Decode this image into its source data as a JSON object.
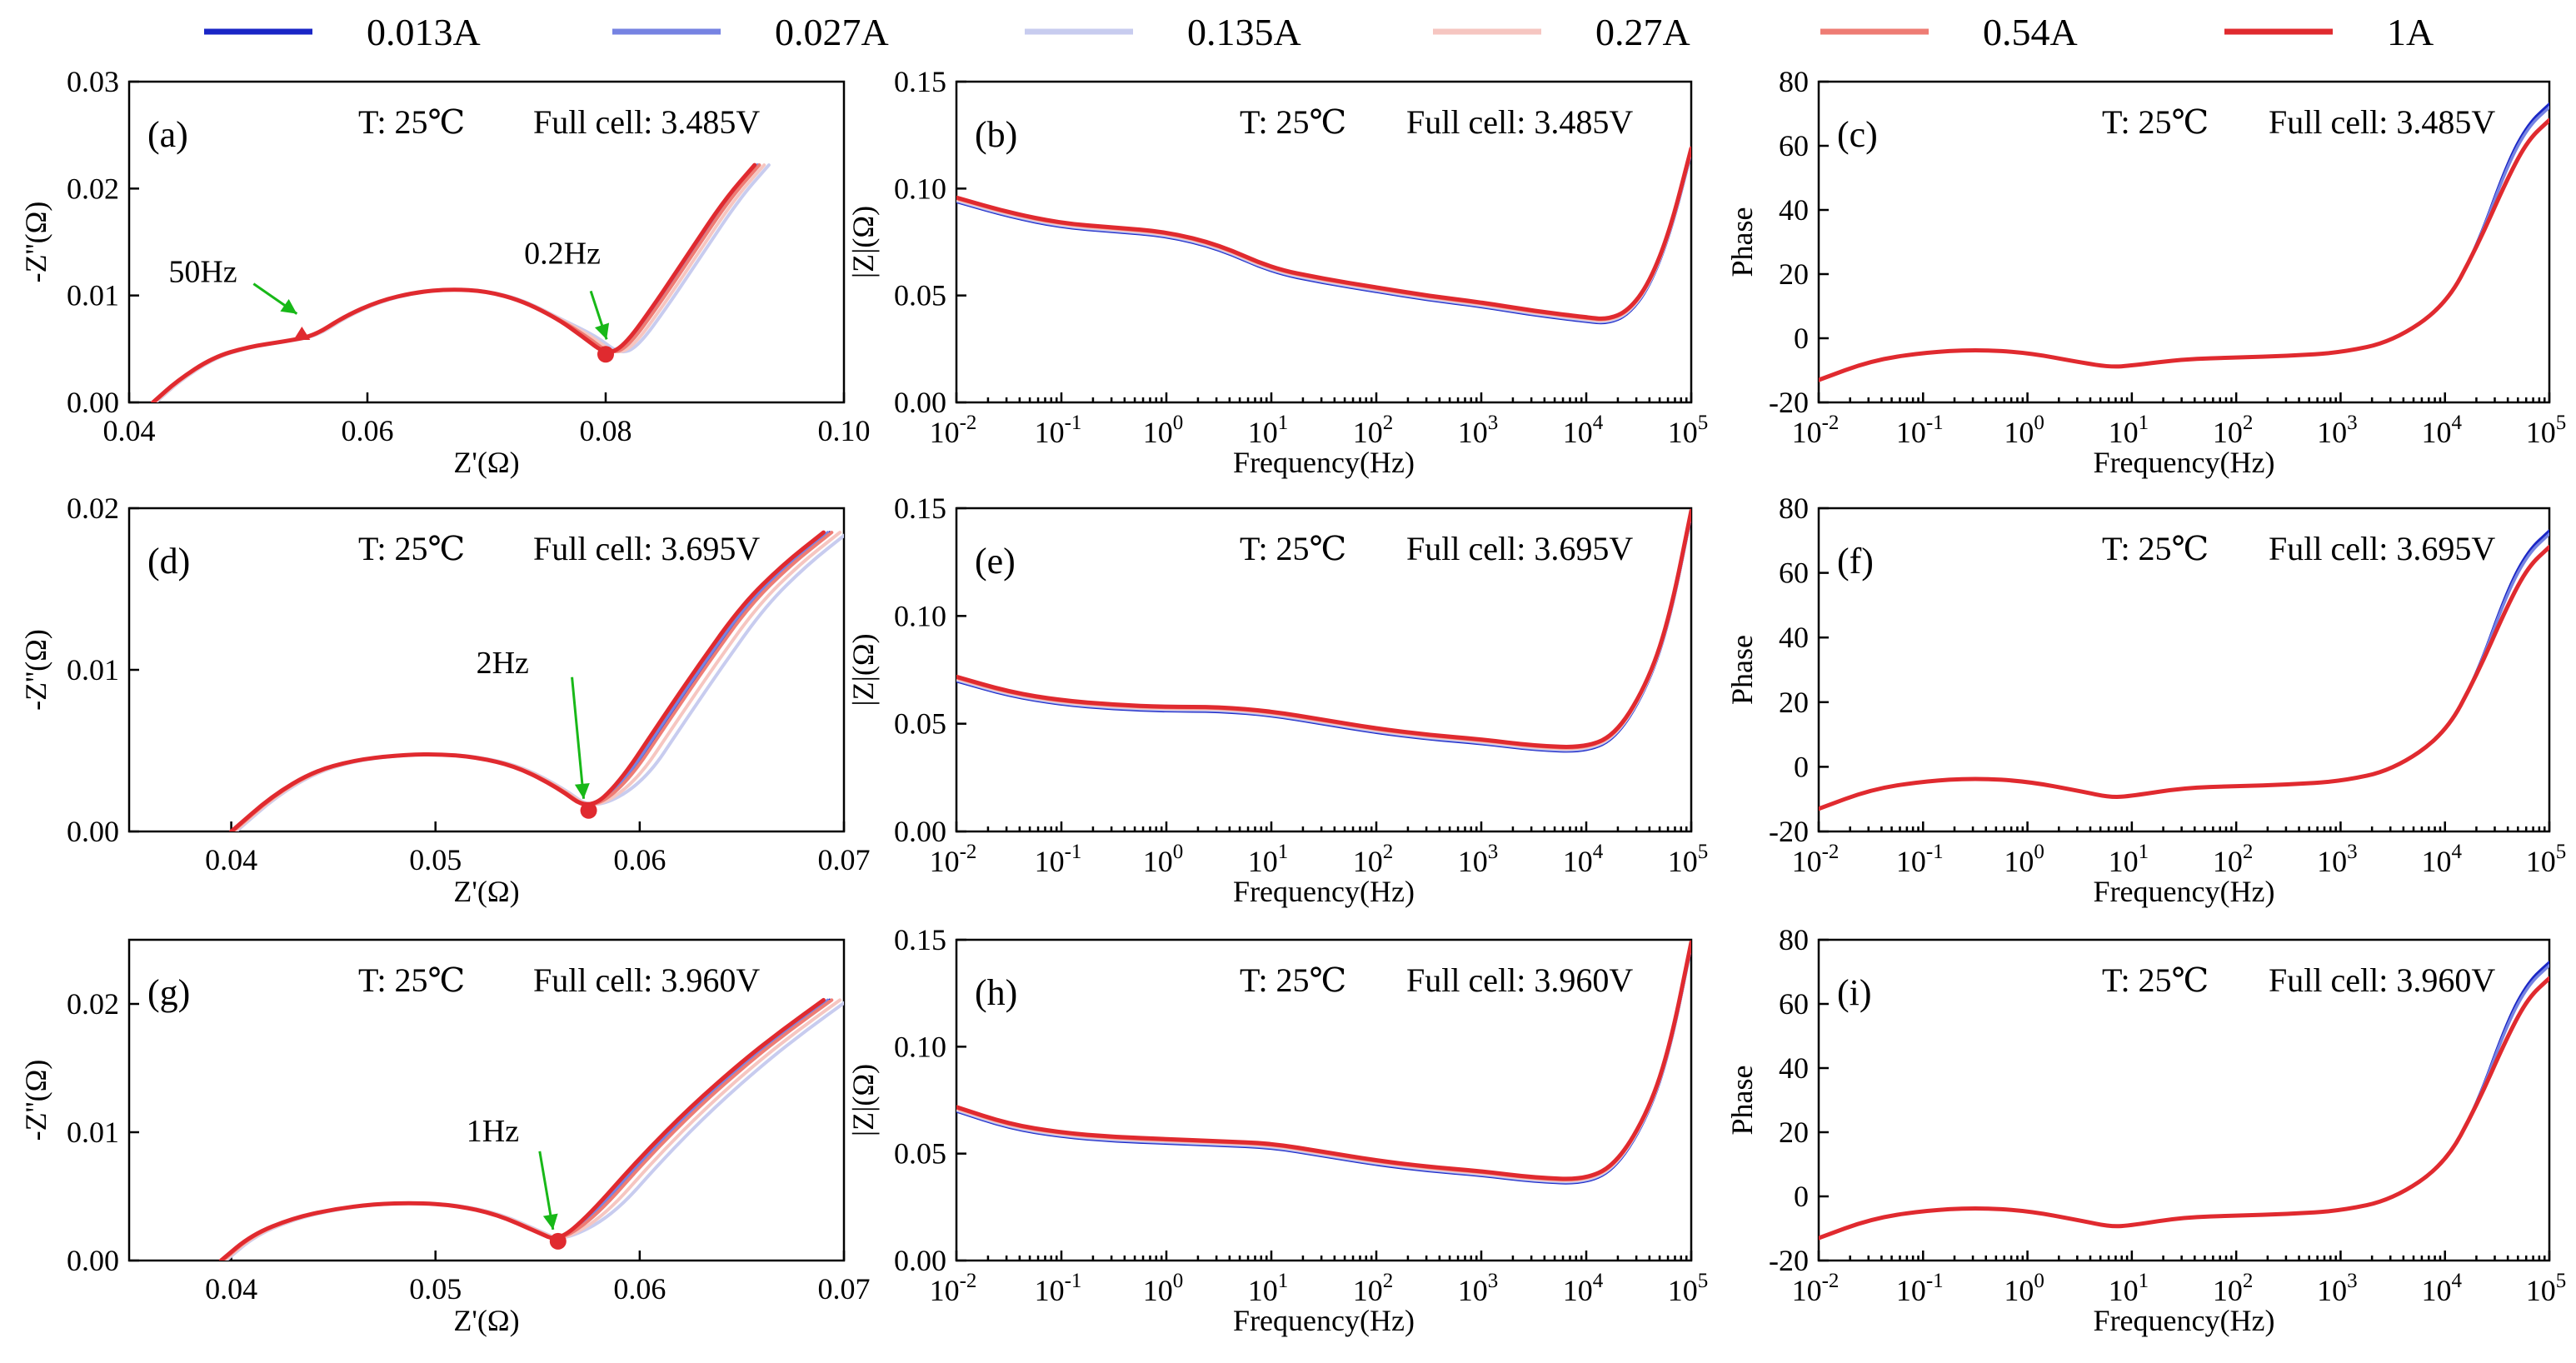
{
  "chart_data": {
    "type": "line",
    "legend": {
      "placement": "top",
      "entries": [
        {
          "label": "0.013A",
          "color": "#1a26c6"
        },
        {
          "label": "0.027A",
          "color": "#7683e2"
        },
        {
          "label": "0.135A",
          "color": "#c8ccef"
        },
        {
          "label": "0.27A",
          "color": "#f6c6c1"
        },
        {
          "label": "0.54A",
          "color": "#ee7c74"
        },
        {
          "label": "1A",
          "color": "#e02a2f"
        }
      ]
    },
    "panels": [
      {
        "id": "a",
        "letter": "(a)",
        "kind": "nyquist",
        "temp": "T: 25℃",
        "cell": "Full cell: 3.485V",
        "xlabel": "Z'(Ω)",
        "ylabel": "-Z''(Ω)",
        "xlim": [
          0.04,
          0.1
        ],
        "ylim": [
          0,
          0.03
        ],
        "xticks": [
          "0.04",
          "0.06",
          "0.08",
          "0.10"
        ],
        "yticks": [
          "0.00",
          "0.01",
          "0.02",
          "0.03"
        ],
        "annotations": [
          {
            "text": "50Hz",
            "x": 0.0545,
            "y": 0.0072
          },
          {
            "text": "0.2Hz",
            "x": 0.0805,
            "y": 0.0048
          }
        ],
        "curve": [
          [
            0.042,
            0
          ],
          [
            0.044,
            0.002
          ],
          [
            0.047,
            0.0042
          ],
          [
            0.05,
            0.0052
          ],
          [
            0.053,
            0.0057
          ],
          [
            0.0555,
            0.0062
          ],
          [
            0.058,
            0.008
          ],
          [
            0.061,
            0.0095
          ],
          [
            0.064,
            0.0103
          ],
          [
            0.067,
            0.0106
          ],
          [
            0.07,
            0.0104
          ],
          [
            0.073,
            0.0095
          ],
          [
            0.076,
            0.0078
          ],
          [
            0.078,
            0.0062
          ],
          [
            0.08,
            0.0045
          ],
          [
            0.0815,
            0.0052
          ],
          [
            0.084,
            0.009
          ],
          [
            0.087,
            0.014
          ],
          [
            0.09,
            0.019
          ],
          [
            0.0925,
            0.0222
          ]
        ],
        "marker": [
          0.08,
          0.0045
        ],
        "marker2": [
          0.0545,
          0.006
        ]
      },
      {
        "id": "b",
        "letter": "(b)",
        "kind": "mag",
        "temp": "T: 25℃",
        "cell": "Full cell: 3.485V",
        "xlabel": "Frequency(Hz)",
        "ylabel": "|Z|(Ω)",
        "xlim": [
          -2,
          5
        ],
        "ylim": [
          0,
          0.15
        ],
        "xticks": [
          "-2",
          "-1",
          "0",
          "1",
          "2",
          "3",
          "4",
          "5"
        ],
        "yticks": [
          "0.00",
          "0.05",
          "0.10",
          "0.15"
        ],
        "curve": [
          [
            -2,
            0.095
          ],
          [
            -1.5,
            0.088
          ],
          [
            -1,
            0.083
          ],
          [
            -0.5,
            0.081
          ],
          [
            0,
            0.079
          ],
          [
            0.5,
            0.073
          ],
          [
            1,
            0.062
          ],
          [
            1.5,
            0.057
          ],
          [
            2,
            0.053
          ],
          [
            2.5,
            0.049
          ],
          [
            3,
            0.046
          ],
          [
            3.5,
            0.042
          ],
          [
            4,
            0.039
          ],
          [
            4.2,
            0.038
          ],
          [
            4.4,
            0.042
          ],
          [
            4.6,
            0.055
          ],
          [
            4.8,
            0.08
          ],
          [
            5,
            0.118
          ]
        ]
      },
      {
        "id": "c",
        "letter": "(c)",
        "kind": "phase",
        "temp": "T: 25℃",
        "cell": "Full cell: 3.485V",
        "xlabel": "Frequency(Hz)",
        "ylabel": "Phase",
        "xlim": [
          -2,
          5
        ],
        "ylim": [
          -20,
          80
        ],
        "xticks": [
          "-2",
          "-1",
          "0",
          "1",
          "2",
          "3",
          "4",
          "5"
        ],
        "yticks": [
          "-20",
          "0",
          "20",
          "40",
          "60",
          "80"
        ],
        "curve": [
          [
            -2,
            -13
          ],
          [
            -1.5,
            -7
          ],
          [
            -1,
            -4.5
          ],
          [
            -0.5,
            -3.5
          ],
          [
            0,
            -4.5
          ],
          [
            0.5,
            -7.5
          ],
          [
            0.8,
            -9
          ],
          [
            1,
            -8.5
          ],
          [
            1.5,
            -6.5
          ],
          [
            2,
            -6
          ],
          [
            2.5,
            -5.5
          ],
          [
            3,
            -4.5
          ],
          [
            3.5,
            -1
          ],
          [
            4,
            10
          ],
          [
            4.3,
            28
          ],
          [
            4.6,
            50
          ],
          [
            4.8,
            62
          ],
          [
            5,
            68
          ]
        ]
      },
      {
        "id": "d",
        "letter": "(d)",
        "kind": "nyquist",
        "temp": "T: 25℃",
        "cell": "Full cell: 3.695V",
        "xlabel": "Z'(Ω)",
        "ylabel": "-Z''(Ω)",
        "xlim": [
          0.035,
          0.07
        ],
        "ylim": [
          0,
          0.02
        ],
        "xticks": [
          "0.04",
          "0.05",
          "0.06",
          "0.07"
        ],
        "xtickvals": [
          0.04,
          0.05,
          0.06,
          0.07
        ],
        "yticks": [
          "0.00",
          "0.01",
          "0.02"
        ],
        "annotations": [
          {
            "text": "2Hz",
            "x": 0.0575,
            "y": 0.0013
          }
        ],
        "curve": [
          [
            0.04,
            0
          ],
          [
            0.042,
            0.0022
          ],
          [
            0.044,
            0.0037
          ],
          [
            0.046,
            0.0044
          ],
          [
            0.048,
            0.0047
          ],
          [
            0.05,
            0.0048
          ],
          [
            0.052,
            0.0046
          ],
          [
            0.054,
            0.004
          ],
          [
            0.056,
            0.0027
          ],
          [
            0.0575,
            0.0013
          ],
          [
            0.059,
            0.003
          ],
          [
            0.061,
            0.0068
          ],
          [
            0.063,
            0.0105
          ],
          [
            0.065,
            0.014
          ],
          [
            0.067,
            0.0165
          ],
          [
            0.069,
            0.0185
          ]
        ],
        "marker": [
          0.0575,
          0.0013
        ]
      },
      {
        "id": "e",
        "letter": "(e)",
        "kind": "mag",
        "temp": "T: 25℃",
        "cell": "Full cell: 3.695V",
        "xlabel": "Frequency(Hz)",
        "ylabel": "|Z|(Ω)",
        "xlim": [
          -2,
          5
        ],
        "ylim": [
          0,
          0.15
        ],
        "xticks": [
          "-2",
          "-1",
          "0",
          "1",
          "2",
          "3",
          "4",
          "5"
        ],
        "yticks": [
          "0.00",
          "0.05",
          "0.10",
          "0.15"
        ],
        "curve": [
          [
            -2,
            0.071
          ],
          [
            -1.5,
            0.064
          ],
          [
            -1,
            0.06
          ],
          [
            -0.5,
            0.058
          ],
          [
            0,
            0.057
          ],
          [
            0.5,
            0.057
          ],
          [
            1,
            0.055
          ],
          [
            1.5,
            0.051
          ],
          [
            2,
            0.047
          ],
          [
            2.5,
            0.044
          ],
          [
            3,
            0.042
          ],
          [
            3.5,
            0.039
          ],
          [
            4,
            0.038
          ],
          [
            4.3,
            0.045
          ],
          [
            4.6,
            0.07
          ],
          [
            4.8,
            0.1
          ],
          [
            5,
            0.148
          ]
        ]
      },
      {
        "id": "f",
        "letter": "(f)",
        "kind": "phase",
        "temp": "T: 25℃",
        "cell": "Full cell: 3.695V",
        "xlabel": "Frequency(Hz)",
        "ylabel": "Phase",
        "xlim": [
          -2,
          5
        ],
        "ylim": [
          -20,
          80
        ],
        "xticks": [
          "-2",
          "-1",
          "0",
          "1",
          "2",
          "3",
          "4",
          "5"
        ],
        "yticks": [
          "-20",
          "0",
          "20",
          "40",
          "60",
          "80"
        ],
        "curve": [
          [
            -2,
            -13
          ],
          [
            -1.5,
            -7
          ],
          [
            -1,
            -4.5
          ],
          [
            -0.5,
            -3.5
          ],
          [
            0,
            -4.5
          ],
          [
            0.5,
            -7.5
          ],
          [
            0.8,
            -9.5
          ],
          [
            1,
            -9
          ],
          [
            1.5,
            -6.5
          ],
          [
            2,
            -6
          ],
          [
            2.5,
            -5.5
          ],
          [
            3,
            -4.5
          ],
          [
            3.5,
            -1
          ],
          [
            4,
            10
          ],
          [
            4.3,
            28
          ],
          [
            4.6,
            50
          ],
          [
            4.8,
            62
          ],
          [
            5,
            68
          ]
        ]
      },
      {
        "id": "g",
        "letter": "(g)",
        "kind": "nyquist",
        "temp": "T: 25℃",
        "cell": "Full cell: 3.960V",
        "xlabel": "Z'(Ω)",
        "ylabel": "-Z''(Ω)",
        "xlim": [
          0.035,
          0.07
        ],
        "ylim": [
          0,
          0.025
        ],
        "xticks": [
          "0.04",
          "0.05",
          "0.06",
          "0.07"
        ],
        "xtickvals": [
          0.04,
          0.05,
          0.06,
          0.07
        ],
        "yticks": [
          "0.00",
          "0.01",
          "0.02"
        ],
        "annotations": [
          {
            "text": "1Hz",
            "x": 0.056,
            "y": 0.0015
          }
        ],
        "curve": [
          [
            0.0395,
            0
          ],
          [
            0.041,
            0.002
          ],
          [
            0.043,
            0.0033
          ],
          [
            0.045,
            0.004
          ],
          [
            0.047,
            0.0044
          ],
          [
            0.049,
            0.0045
          ],
          [
            0.051,
            0.0043
          ],
          [
            0.053,
            0.0036
          ],
          [
            0.055,
            0.0022
          ],
          [
            0.056,
            0.0015
          ],
          [
            0.0575,
            0.0035
          ],
          [
            0.06,
            0.008
          ],
          [
            0.0625,
            0.012
          ],
          [
            0.065,
            0.0155
          ],
          [
            0.067,
            0.018
          ],
          [
            0.069,
            0.0203
          ]
        ],
        "marker": [
          0.056,
          0.0015
        ]
      },
      {
        "id": "h",
        "letter": "(h)",
        "kind": "mag",
        "temp": "T: 25℃",
        "cell": "Full cell: 3.960V",
        "xlabel": "Frequency(Hz)",
        "ylabel": "|Z|(Ω)",
        "xlim": [
          -2,
          5
        ],
        "ylim": [
          0,
          0.15
        ],
        "xticks": [
          "-2",
          "-1",
          "0",
          "1",
          "2",
          "3",
          "4",
          "5"
        ],
        "yticks": [
          "0.00",
          "0.05",
          "0.10",
          "0.15"
        ],
        "curve": [
          [
            -2,
            0.071
          ],
          [
            -1.5,
            0.063
          ],
          [
            -1,
            0.059
          ],
          [
            -0.5,
            0.057
          ],
          [
            0,
            0.056
          ],
          [
            0.5,
            0.055
          ],
          [
            1,
            0.054
          ],
          [
            1.5,
            0.05
          ],
          [
            2,
            0.046
          ],
          [
            2.5,
            0.043
          ],
          [
            3,
            0.041
          ],
          [
            3.5,
            0.038
          ],
          [
            4,
            0.037
          ],
          [
            4.3,
            0.045
          ],
          [
            4.6,
            0.07
          ],
          [
            4.8,
            0.1
          ],
          [
            5,
            0.148
          ]
        ]
      },
      {
        "id": "i",
        "letter": "(i)",
        "kind": "phase",
        "temp": "T: 25℃",
        "cell": "Full cell: 3.960V",
        "xlabel": "Frequency(Hz)",
        "ylabel": "Phase",
        "xlim": [
          -2,
          5
        ],
        "ylim": [
          -20,
          80
        ],
        "xticks": [
          "-2",
          "-1",
          "0",
          "1",
          "2",
          "3",
          "4",
          "5"
        ],
        "yticks": [
          "-20",
          "0",
          "20",
          "40",
          "60",
          "80"
        ],
        "curve": [
          [
            -2,
            -13
          ],
          [
            -1.5,
            -7
          ],
          [
            -1,
            -4.5
          ],
          [
            -0.5,
            -3.5
          ],
          [
            0,
            -4.5
          ],
          [
            0.5,
            -7.5
          ],
          [
            0.8,
            -9.5
          ],
          [
            1,
            -9
          ],
          [
            1.5,
            -6.5
          ],
          [
            2,
            -6
          ],
          [
            2.5,
            -5.5
          ],
          [
            3,
            -4.5
          ],
          [
            3.5,
            -1
          ],
          [
            4,
            10
          ],
          [
            4.3,
            28
          ],
          [
            4.6,
            50
          ],
          [
            4.8,
            62
          ],
          [
            5,
            68
          ]
        ]
      }
    ]
  }
}
